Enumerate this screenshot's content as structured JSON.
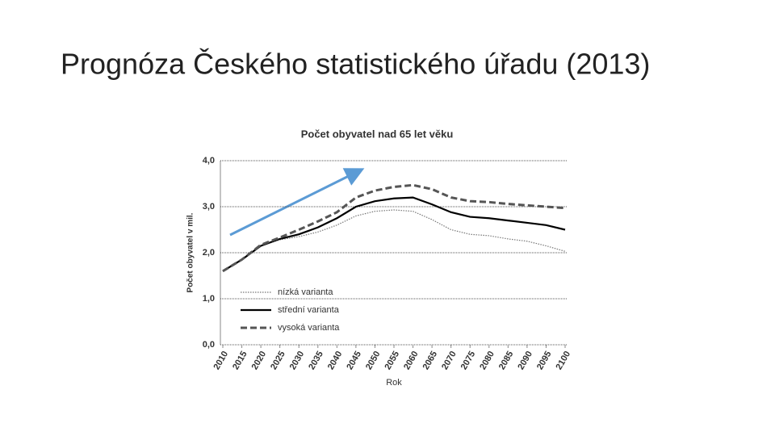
{
  "slide_title": "Prognóza Českého statistického úřadu (2013)",
  "chart_data": {
    "type": "line",
    "title": "Počet obyvatel  nad 65  let věku",
    "xlabel": "Rok",
    "ylabel": "Počet obyvatel v mil.",
    "x": [
      2010,
      2015,
      2020,
      2025,
      2030,
      2035,
      2040,
      2045,
      2050,
      2055,
      2060,
      2065,
      2070,
      2075,
      2080,
      2085,
      2090,
      2095,
      2100
    ],
    "series": [
      {
        "name": "nízká varianta",
        "color": "#777777",
        "style": "dotted",
        "values": [
          1.6,
          1.85,
          2.15,
          2.28,
          2.35,
          2.45,
          2.6,
          2.8,
          2.9,
          2.93,
          2.9,
          2.72,
          2.5,
          2.4,
          2.37,
          2.3,
          2.25,
          2.15,
          2.03
        ]
      },
      {
        "name": "střední varianta",
        "color": "#000000",
        "style": "solid",
        "values": [
          1.6,
          1.85,
          2.15,
          2.3,
          2.4,
          2.55,
          2.75,
          3.0,
          3.12,
          3.18,
          3.2,
          3.05,
          2.88,
          2.78,
          2.75,
          2.7,
          2.65,
          2.6,
          2.5
        ]
      },
      {
        "name": "vysoká varianta",
        "color": "#555555",
        "style": "dashed",
        "values": [
          1.6,
          1.85,
          2.17,
          2.33,
          2.5,
          2.68,
          2.88,
          3.2,
          3.35,
          3.43,
          3.47,
          3.38,
          3.2,
          3.12,
          3.1,
          3.06,
          3.03,
          3.0,
          2.97
        ]
      }
    ],
    "xlim": [
      2010,
      2100
    ],
    "xticks": [
      2010,
      2015,
      2020,
      2025,
      2030,
      2035,
      2040,
      2045,
      2050,
      2055,
      2060,
      2065,
      2070,
      2075,
      2080,
      2085,
      2090,
      2095,
      2100
    ],
    "ylim": [
      0,
      4
    ],
    "yticks": [
      {
        "value": 0,
        "label": "0,0"
      },
      {
        "value": 1,
        "label": "1,0"
      },
      {
        "value": 2,
        "label": "2,0"
      },
      {
        "value": 3,
        "label": "3,0"
      },
      {
        "value": 4,
        "label": "4,0"
      }
    ],
    "grid": true,
    "legend": "lower left"
  }
}
